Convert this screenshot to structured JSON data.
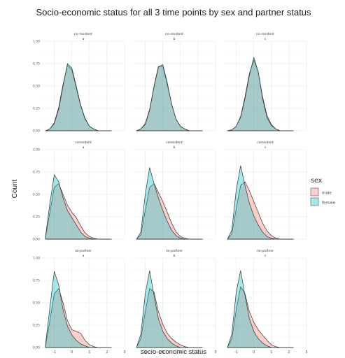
{
  "chart_data": {
    "type": "area",
    "title": "Socio-economic status for all 3 time points by sex and partner status",
    "xlabel": "socio-economic status",
    "ylabel": "Count",
    "xlim": [
      -1.7,
      3.0
    ],
    "ylim": [
      0,
      1.0
    ],
    "x_ticks": [
      "-1",
      "0",
      "1",
      "2",
      "3"
    ],
    "y_ticks": [
      "0.00",
      "0.25",
      "0.50",
      "0.75",
      "1.00"
    ],
    "grid": true,
    "legend": {
      "title": "sex",
      "position": "right",
      "entries": [
        {
          "label": "male",
          "color": "#F8766D"
        },
        {
          "label": "female",
          "color": "#00BFC4"
        }
      ]
    },
    "colors": {
      "male": "#F8766D",
      "female": "#00BFC4",
      "outline": "#333333",
      "grid": "#e6e6e6"
    },
    "x": [
      -1.5,
      -1.25,
      -1.0,
      -0.75,
      -0.5,
      -0.25,
      0.0,
      0.25,
      0.5,
      0.75,
      1.0,
      1.25,
      1.5,
      1.75,
      2.0,
      2.25
    ],
    "panels": [
      {
        "row_label": "no-resident",
        "col_label": "a",
        "series": [
          {
            "name": "male",
            "values": [
              0.0,
              0.02,
              0.09,
              0.26,
              0.52,
              0.73,
              0.68,
              0.48,
              0.28,
              0.13,
              0.05,
              0.02,
              0.0,
              0.0,
              0.0,
              0.0
            ]
          },
          {
            "name": "female",
            "values": [
              0.0,
              0.02,
              0.08,
              0.24,
              0.5,
              0.75,
              0.7,
              0.5,
              0.29,
              0.14,
              0.05,
              0.02,
              0.0,
              0.0,
              0.0,
              0.0
            ]
          }
        ]
      },
      {
        "row_label": "no-resident",
        "col_label": "b",
        "series": [
          {
            "name": "male",
            "values": [
              0.0,
              0.02,
              0.08,
              0.24,
              0.5,
              0.72,
              0.72,
              0.52,
              0.3,
              0.13,
              0.05,
              0.02,
              0.0,
              0.0,
              0.0,
              0.0
            ]
          },
          {
            "name": "female",
            "values": [
              0.0,
              0.02,
              0.07,
              0.23,
              0.49,
              0.71,
              0.74,
              0.54,
              0.3,
              0.13,
              0.05,
              0.02,
              0.0,
              0.0,
              0.0,
              0.0
            ]
          }
        ]
      },
      {
        "row_label": "no-resident",
        "col_label": "c",
        "series": [
          {
            "name": "male",
            "values": [
              0.0,
              0.01,
              0.05,
              0.16,
              0.38,
              0.64,
              0.79,
              0.66,
              0.38,
              0.17,
              0.07,
              0.02,
              0.0,
              0.0,
              0.0,
              0.0
            ]
          },
          {
            "name": "female",
            "values": [
              0.0,
              0.01,
              0.05,
              0.15,
              0.36,
              0.62,
              0.82,
              0.66,
              0.36,
              0.15,
              0.06,
              0.02,
              0.0,
              0.0,
              0.0,
              0.0
            ]
          }
        ]
      },
      {
        "row_label": "coresident",
        "col_label": "a",
        "series": [
          {
            "name": "male",
            "values": [
              0.02,
              0.3,
              0.58,
              0.62,
              0.5,
              0.38,
              0.3,
              0.24,
              0.15,
              0.07,
              0.03,
              0.01,
              0.0,
              0.0,
              0.0,
              0.0
            ]
          },
          {
            "name": "female",
            "values": [
              0.03,
              0.4,
              0.72,
              0.64,
              0.46,
              0.32,
              0.24,
              0.16,
              0.08,
              0.03,
              0.01,
              0.0,
              0.0,
              0.0,
              0.0,
              0.0
            ]
          }
        ]
      },
      {
        "row_label": "coresident",
        "col_label": "b",
        "series": [
          {
            "name": "male",
            "values": [
              0.0,
              0.05,
              0.32,
              0.58,
              0.62,
              0.52,
              0.42,
              0.3,
              0.18,
              0.08,
              0.03,
              0.01,
              0.0,
              0.0,
              0.0,
              0.0
            ]
          },
          {
            "name": "female",
            "values": [
              0.0,
              0.08,
              0.5,
              0.8,
              0.62,
              0.46,
              0.32,
              0.2,
              0.1,
              0.04,
              0.01,
              0.0,
              0.0,
              0.0,
              0.0,
              0.0
            ]
          }
        ]
      },
      {
        "row_label": "coresident",
        "col_label": "c",
        "series": [
          {
            "name": "male",
            "values": [
              0.0,
              0.06,
              0.34,
              0.6,
              0.64,
              0.54,
              0.42,
              0.3,
              0.18,
              0.09,
              0.04,
              0.01,
              0.0,
              0.0,
              0.0,
              0.0
            ]
          },
          {
            "name": "female",
            "values": [
              0.0,
              0.1,
              0.55,
              0.82,
              0.6,
              0.4,
              0.26,
              0.16,
              0.08,
              0.03,
              0.01,
              0.0,
              0.0,
              0.0,
              0.0,
              0.0
            ]
          }
        ]
      },
      {
        "row_label": "no-partner",
        "col_label": "a",
        "series": [
          {
            "name": "male",
            "values": [
              0.02,
              0.3,
              0.6,
              0.66,
              0.5,
              0.3,
              0.2,
              0.18,
              0.16,
              0.08,
              0.03,
              0.01,
              0.0,
              0.0,
              0.0,
              0.0
            ]
          },
          {
            "name": "female",
            "values": [
              0.03,
              0.45,
              0.85,
              0.7,
              0.42,
              0.24,
              0.14,
              0.08,
              0.04,
              0.02,
              0.0,
              0.0,
              0.0,
              0.0,
              0.0,
              0.0
            ]
          }
        ]
      },
      {
        "row_label": "no-partner",
        "col_label": "b",
        "series": [
          {
            "name": "male",
            "values": [
              0.0,
              0.1,
              0.4,
              0.66,
              0.62,
              0.4,
              0.26,
              0.16,
              0.1,
              0.06,
              0.03,
              0.01,
              0.0,
              0.0,
              0.0,
              0.0
            ]
          },
          {
            "name": "female",
            "values": [
              0.0,
              0.15,
              0.6,
              0.86,
              0.58,
              0.32,
              0.18,
              0.1,
              0.05,
              0.02,
              0.0,
              0.0,
              0.0,
              0.0,
              0.0,
              0.0
            ]
          }
        ]
      },
      {
        "row_label": "no-partner",
        "col_label": "c",
        "series": [
          {
            "name": "male",
            "values": [
              0.0,
              0.1,
              0.42,
              0.68,
              0.6,
              0.4,
              0.28,
              0.2,
              0.14,
              0.08,
              0.03,
              0.01,
              0.0,
              0.0,
              0.0,
              0.0
            ]
          },
          {
            "name": "female",
            "values": [
              0.0,
              0.15,
              0.62,
              0.86,
              0.58,
              0.32,
              0.18,
              0.1,
              0.05,
              0.02,
              0.0,
              0.0,
              0.0,
              0.0,
              0.0,
              0.0
            ]
          }
        ]
      }
    ]
  }
}
